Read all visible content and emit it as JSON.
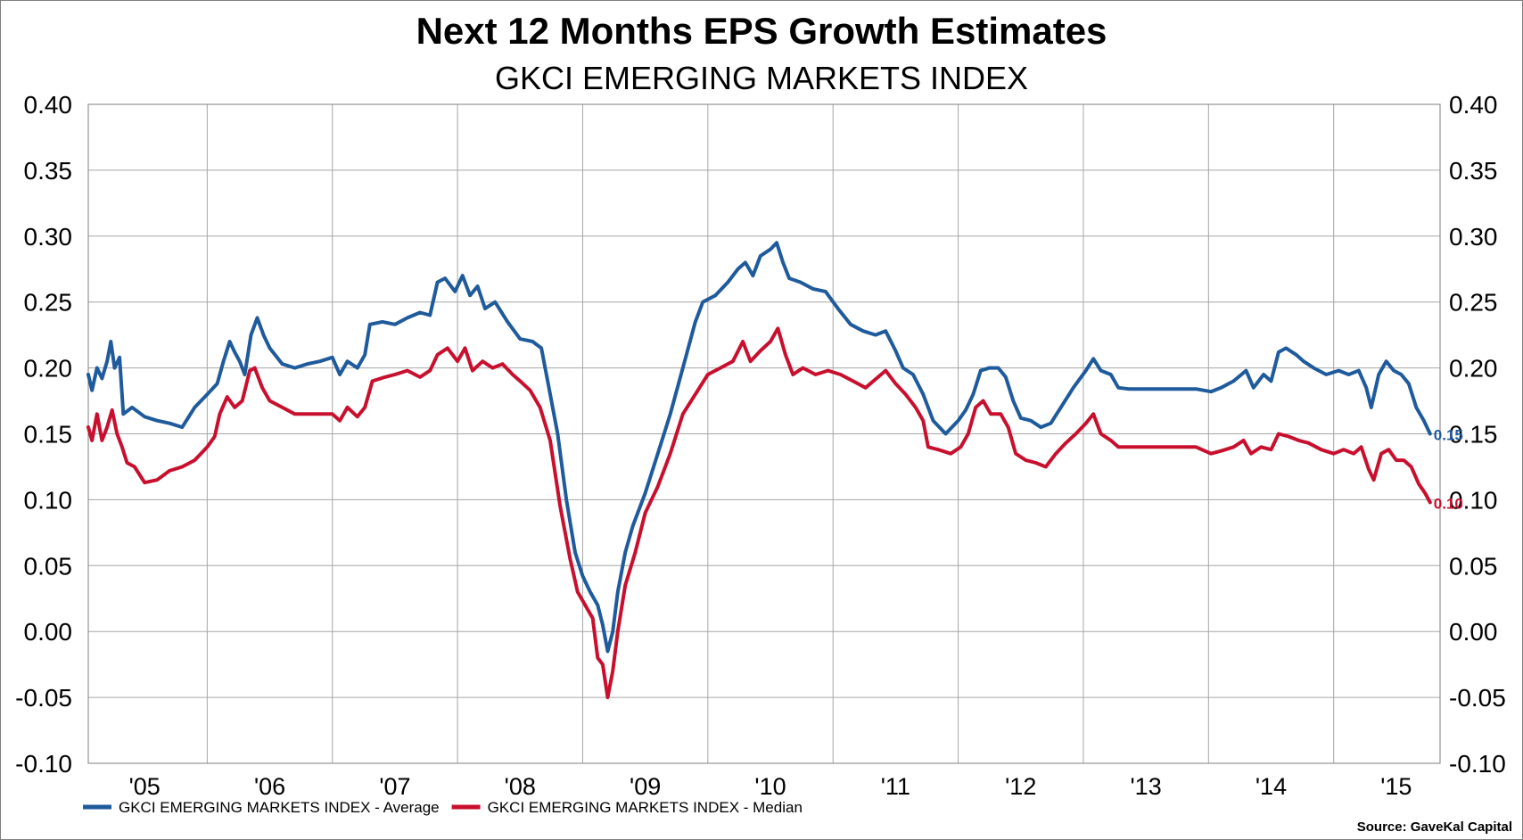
{
  "chart_data": {
    "type": "line",
    "title": "Next 12 Months EPS Growth Estimates",
    "subtitle": "GKCI EMERGING MARKETS INDEX",
    "source": "Source: GaveKal Capital",
    "ylim": [
      -0.1,
      0.4
    ],
    "yticks": [
      "0.40",
      "0.35",
      "0.30",
      "0.25",
      "0.20",
      "0.15",
      "0.10",
      "0.05",
      "0.00",
      "-0.05",
      "-0.10"
    ],
    "xlim": [
      2004.55,
      2015.35
    ],
    "xticks": [
      {
        "label": "'05",
        "x": 2005.0
      },
      {
        "label": "'06",
        "x": 2006.0
      },
      {
        "label": "'07",
        "x": 2007.0
      },
      {
        "label": "'08",
        "x": 2008.0
      },
      {
        "label": "'09",
        "x": 2009.0
      },
      {
        "label": "'10",
        "x": 2010.0
      },
      {
        "label": "'11",
        "x": 2011.0
      },
      {
        "label": "'12",
        "x": 2012.0
      },
      {
        "label": "'13",
        "x": 2013.0
      },
      {
        "label": "'14",
        "x": 2014.0
      },
      {
        "label": "'15",
        "x": 2015.0
      }
    ],
    "grid": true,
    "legend_position": "bottom-left",
    "series": [
      {
        "name": "GKCI EMERGING MARKETS INDEX - Average",
        "color": "#1f5b9c",
        "end_label": "0.15",
        "points": [
          [
            2004.55,
            0.195
          ],
          [
            2004.58,
            0.183
          ],
          [
            2004.62,
            0.2
          ],
          [
            2004.66,
            0.192
          ],
          [
            2004.7,
            0.205
          ],
          [
            2004.73,
            0.22
          ],
          [
            2004.76,
            0.2
          ],
          [
            2004.8,
            0.208
          ],
          [
            2004.83,
            0.165
          ],
          [
            2004.9,
            0.17
          ],
          [
            2005.0,
            0.163
          ],
          [
            2005.1,
            0.16
          ],
          [
            2005.2,
            0.158
          ],
          [
            2005.3,
            0.155
          ],
          [
            2005.4,
            0.17
          ],
          [
            2005.5,
            0.18
          ],
          [
            2005.58,
            0.188
          ],
          [
            2005.63,
            0.205
          ],
          [
            2005.68,
            0.22
          ],
          [
            2005.72,
            0.212
          ],
          [
            2005.76,
            0.205
          ],
          [
            2005.8,
            0.195
          ],
          [
            2005.85,
            0.225
          ],
          [
            2005.9,
            0.238
          ],
          [
            2005.95,
            0.225
          ],
          [
            2006.0,
            0.215
          ],
          [
            2006.1,
            0.203
          ],
          [
            2006.2,
            0.2
          ],
          [
            2006.3,
            0.203
          ],
          [
            2006.4,
            0.205
          ],
          [
            2006.5,
            0.208
          ],
          [
            2006.56,
            0.195
          ],
          [
            2006.62,
            0.205
          ],
          [
            2006.7,
            0.2
          ],
          [
            2006.76,
            0.21
          ],
          [
            2006.8,
            0.233
          ],
          [
            2006.9,
            0.235
          ],
          [
            2007.0,
            0.233
          ],
          [
            2007.1,
            0.238
          ],
          [
            2007.2,
            0.242
          ],
          [
            2007.28,
            0.24
          ],
          [
            2007.34,
            0.265
          ],
          [
            2007.4,
            0.268
          ],
          [
            2007.48,
            0.258
          ],
          [
            2007.54,
            0.27
          ],
          [
            2007.6,
            0.255
          ],
          [
            2007.66,
            0.262
          ],
          [
            2007.72,
            0.245
          ],
          [
            2007.8,
            0.25
          ],
          [
            2007.9,
            0.235
          ],
          [
            2008.0,
            0.222
          ],
          [
            2008.1,
            0.22
          ],
          [
            2008.17,
            0.215
          ],
          [
            2008.22,
            0.19
          ],
          [
            2008.3,
            0.15
          ],
          [
            2008.37,
            0.1
          ],
          [
            2008.44,
            0.06
          ],
          [
            2008.5,
            0.042
          ],
          [
            2008.56,
            0.03
          ],
          [
            2008.62,
            0.02
          ],
          [
            2008.66,
            0.005
          ],
          [
            2008.7,
            -0.015
          ],
          [
            2008.74,
            0.0
          ],
          [
            2008.78,
            0.03
          ],
          [
            2008.84,
            0.06
          ],
          [
            2008.9,
            0.08
          ],
          [
            2009.0,
            0.105
          ],
          [
            2009.1,
            0.135
          ],
          [
            2009.2,
            0.165
          ],
          [
            2009.3,
            0.2
          ],
          [
            2009.4,
            0.235
          ],
          [
            2009.46,
            0.25
          ],
          [
            2009.56,
            0.255
          ],
          [
            2009.66,
            0.265
          ],
          [
            2009.74,
            0.275
          ],
          [
            2009.8,
            0.28
          ],
          [
            2009.86,
            0.27
          ],
          [
            2009.92,
            0.285
          ],
          [
            2010.0,
            0.29
          ],
          [
            2010.05,
            0.295
          ],
          [
            2010.1,
            0.28
          ],
          [
            2010.15,
            0.268
          ],
          [
            2010.24,
            0.265
          ],
          [
            2010.34,
            0.26
          ],
          [
            2010.44,
            0.258
          ],
          [
            2010.54,
            0.245
          ],
          [
            2010.64,
            0.233
          ],
          [
            2010.74,
            0.228
          ],
          [
            2010.84,
            0.225
          ],
          [
            2010.92,
            0.228
          ],
          [
            2011.0,
            0.213
          ],
          [
            2011.06,
            0.2
          ],
          [
            2011.14,
            0.195
          ],
          [
            2011.22,
            0.18
          ],
          [
            2011.3,
            0.16
          ],
          [
            2011.4,
            0.15
          ],
          [
            2011.5,
            0.16
          ],
          [
            2011.56,
            0.168
          ],
          [
            2011.62,
            0.18
          ],
          [
            2011.68,
            0.198
          ],
          [
            2011.75,
            0.2
          ],
          [
            2011.82,
            0.2
          ],
          [
            2011.88,
            0.193
          ],
          [
            2011.94,
            0.175
          ],
          [
            2012.0,
            0.162
          ],
          [
            2012.08,
            0.16
          ],
          [
            2012.16,
            0.155
          ],
          [
            2012.24,
            0.158
          ],
          [
            2012.32,
            0.17
          ],
          [
            2012.42,
            0.185
          ],
          [
            2012.52,
            0.198
          ],
          [
            2012.58,
            0.207
          ],
          [
            2012.64,
            0.198
          ],
          [
            2012.72,
            0.195
          ],
          [
            2012.78,
            0.185
          ],
          [
            2012.86,
            0.184
          ],
          [
            2013.0,
            0.184
          ],
          [
            2013.2,
            0.184
          ],
          [
            2013.4,
            0.184
          ],
          [
            2013.52,
            0.182
          ],
          [
            2013.6,
            0.185
          ],
          [
            2013.7,
            0.19
          ],
          [
            2013.8,
            0.198
          ],
          [
            2013.86,
            0.185
          ],
          [
            2013.94,
            0.195
          ],
          [
            2014.0,
            0.19
          ],
          [
            2014.06,
            0.212
          ],
          [
            2014.12,
            0.215
          ],
          [
            2014.2,
            0.21
          ],
          [
            2014.26,
            0.205
          ],
          [
            2014.34,
            0.2
          ],
          [
            2014.44,
            0.195
          ],
          [
            2014.54,
            0.198
          ],
          [
            2014.62,
            0.195
          ],
          [
            2014.7,
            0.198
          ],
          [
            2014.76,
            0.185
          ],
          [
            2014.8,
            0.17
          ],
          [
            2014.86,
            0.195
          ],
          [
            2014.92,
            0.205
          ],
          [
            2014.98,
            0.198
          ],
          [
            2015.04,
            0.195
          ],
          [
            2015.1,
            0.188
          ],
          [
            2015.16,
            0.17
          ],
          [
            2015.22,
            0.16
          ],
          [
            2015.27,
            0.15
          ]
        ]
      },
      {
        "name": "GKCI EMERGING MARKETS INDEX - Median",
        "color": "#c8102e",
        "end_label": "0.10",
        "points": [
          [
            2004.55,
            0.155
          ],
          [
            2004.58,
            0.145
          ],
          [
            2004.62,
            0.165
          ],
          [
            2004.66,
            0.145
          ],
          [
            2004.7,
            0.155
          ],
          [
            2004.74,
            0.168
          ],
          [
            2004.78,
            0.15
          ],
          [
            2004.82,
            0.14
          ],
          [
            2004.86,
            0.128
          ],
          [
            2004.92,
            0.125
          ],
          [
            2005.0,
            0.113
          ],
          [
            2005.1,
            0.115
          ],
          [
            2005.2,
            0.122
          ],
          [
            2005.3,
            0.125
          ],
          [
            2005.4,
            0.13
          ],
          [
            2005.5,
            0.14
          ],
          [
            2005.56,
            0.148
          ],
          [
            2005.6,
            0.165
          ],
          [
            2005.66,
            0.178
          ],
          [
            2005.72,
            0.17
          ],
          [
            2005.78,
            0.175
          ],
          [
            2005.84,
            0.198
          ],
          [
            2005.88,
            0.2
          ],
          [
            2005.94,
            0.185
          ],
          [
            2006.0,
            0.175
          ],
          [
            2006.1,
            0.17
          ],
          [
            2006.2,
            0.165
          ],
          [
            2006.3,
            0.165
          ],
          [
            2006.4,
            0.165
          ],
          [
            2006.5,
            0.165
          ],
          [
            2006.56,
            0.16
          ],
          [
            2006.62,
            0.17
          ],
          [
            2006.7,
            0.163
          ],
          [
            2006.76,
            0.17
          ],
          [
            2006.82,
            0.19
          ],
          [
            2006.92,
            0.193
          ],
          [
            2007.0,
            0.195
          ],
          [
            2007.1,
            0.198
          ],
          [
            2007.2,
            0.193
          ],
          [
            2007.28,
            0.198
          ],
          [
            2007.34,
            0.21
          ],
          [
            2007.42,
            0.215
          ],
          [
            2007.5,
            0.205
          ],
          [
            2007.56,
            0.215
          ],
          [
            2007.62,
            0.198
          ],
          [
            2007.7,
            0.205
          ],
          [
            2007.78,
            0.2
          ],
          [
            2007.86,
            0.203
          ],
          [
            2007.94,
            0.195
          ],
          [
            2008.0,
            0.19
          ],
          [
            2008.08,
            0.183
          ],
          [
            2008.16,
            0.17
          ],
          [
            2008.24,
            0.145
          ],
          [
            2008.32,
            0.095
          ],
          [
            2008.4,
            0.055
          ],
          [
            2008.46,
            0.03
          ],
          [
            2008.52,
            0.02
          ],
          [
            2008.58,
            0.01
          ],
          [
            2008.62,
            -0.02
          ],
          [
            2008.66,
            -0.025
          ],
          [
            2008.7,
            -0.05
          ],
          [
            2008.74,
            -0.03
          ],
          [
            2008.78,
            0.0
          ],
          [
            2008.84,
            0.035
          ],
          [
            2008.92,
            0.06
          ],
          [
            2009.0,
            0.09
          ],
          [
            2009.1,
            0.11
          ],
          [
            2009.2,
            0.135
          ],
          [
            2009.3,
            0.165
          ],
          [
            2009.4,
            0.18
          ],
          [
            2009.5,
            0.195
          ],
          [
            2009.6,
            0.2
          ],
          [
            2009.7,
            0.205
          ],
          [
            2009.78,
            0.22
          ],
          [
            2009.84,
            0.205
          ],
          [
            2009.92,
            0.213
          ],
          [
            2010.0,
            0.22
          ],
          [
            2010.06,
            0.23
          ],
          [
            2010.12,
            0.21
          ],
          [
            2010.18,
            0.195
          ],
          [
            2010.26,
            0.2
          ],
          [
            2010.36,
            0.195
          ],
          [
            2010.46,
            0.198
          ],
          [
            2010.56,
            0.195
          ],
          [
            2010.66,
            0.19
          ],
          [
            2010.76,
            0.185
          ],
          [
            2010.86,
            0.193
          ],
          [
            2010.92,
            0.198
          ],
          [
            2011.0,
            0.188
          ],
          [
            2011.08,
            0.18
          ],
          [
            2011.16,
            0.17
          ],
          [
            2011.22,
            0.16
          ],
          [
            2011.26,
            0.14
          ],
          [
            2011.34,
            0.138
          ],
          [
            2011.44,
            0.135
          ],
          [
            2011.52,
            0.14
          ],
          [
            2011.58,
            0.15
          ],
          [
            2011.64,
            0.17
          ],
          [
            2011.7,
            0.175
          ],
          [
            2011.76,
            0.165
          ],
          [
            2011.84,
            0.165
          ],
          [
            2011.9,
            0.155
          ],
          [
            2011.96,
            0.135
          ],
          [
            2012.04,
            0.13
          ],
          [
            2012.12,
            0.128
          ],
          [
            2012.2,
            0.125
          ],
          [
            2012.28,
            0.135
          ],
          [
            2012.36,
            0.143
          ],
          [
            2012.44,
            0.15
          ],
          [
            2012.52,
            0.158
          ],
          [
            2012.58,
            0.165
          ],
          [
            2012.64,
            0.15
          ],
          [
            2012.72,
            0.145
          ],
          [
            2012.78,
            0.14
          ],
          [
            2012.86,
            0.14
          ],
          [
            2013.0,
            0.14
          ],
          [
            2013.2,
            0.14
          ],
          [
            2013.4,
            0.14
          ],
          [
            2013.52,
            0.135
          ],
          [
            2013.6,
            0.137
          ],
          [
            2013.7,
            0.14
          ],
          [
            2013.78,
            0.145
          ],
          [
            2013.84,
            0.135
          ],
          [
            2013.92,
            0.14
          ],
          [
            2014.0,
            0.138
          ],
          [
            2014.06,
            0.15
          ],
          [
            2014.14,
            0.148
          ],
          [
            2014.22,
            0.145
          ],
          [
            2014.3,
            0.143
          ],
          [
            2014.4,
            0.138
          ],
          [
            2014.5,
            0.135
          ],
          [
            2014.58,
            0.138
          ],
          [
            2014.66,
            0.135
          ],
          [
            2014.72,
            0.14
          ],
          [
            2014.78,
            0.123
          ],
          [
            2014.82,
            0.115
          ],
          [
            2014.88,
            0.135
          ],
          [
            2014.94,
            0.138
          ],
          [
            2015.0,
            0.13
          ],
          [
            2015.06,
            0.13
          ],
          [
            2015.12,
            0.125
          ],
          [
            2015.18,
            0.112
          ],
          [
            2015.23,
            0.105
          ],
          [
            2015.27,
            0.098
          ]
        ]
      }
    ]
  }
}
